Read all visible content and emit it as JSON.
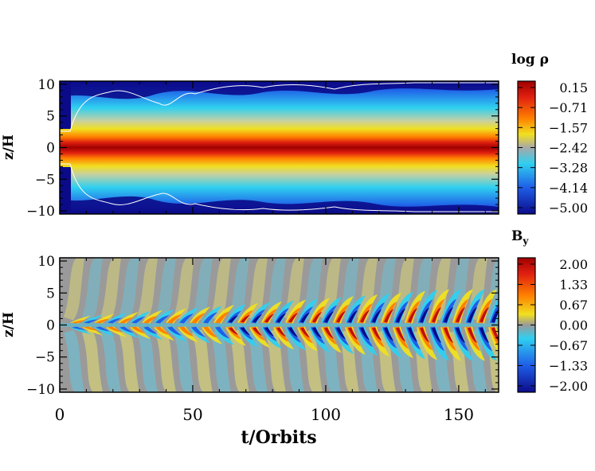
{
  "figure": {
    "xlabel": "t/Orbits",
    "x_ticks": [
      "0",
      "50",
      "100",
      "150"
    ]
  },
  "chart_data": [
    {
      "type": "heatmap",
      "title": "",
      "xlabel": "t/Orbits",
      "ylabel": "z/H",
      "xlim": [
        0,
        165
      ],
      "ylim": [
        -10.5,
        10.5
      ],
      "x_tick_values": [
        0,
        50,
        100,
        150
      ],
      "y_tick_values": [
        10,
        5,
        0,
        -5,
        -10
      ],
      "y_tick_labels": [
        "10",
        "5",
        "0",
        "−5",
        "−10"
      ],
      "colorbar": {
        "label": "log ρ",
        "ticks": [
          "0.15",
          "−0.71",
          "−1.57",
          "−2.42",
          "−3.28",
          "−4.14",
          "−5.00"
        ],
        "range": [
          -5.0,
          0.15
        ]
      },
      "colors": [
        "#0b0b8a",
        "#1f5ee8",
        "#2fd0f0",
        "#c8c8a0",
        "#f0e020",
        "#ff8000",
        "#d01010",
        "#a00000"
      ]
    },
    {
      "type": "heatmap",
      "title": "",
      "xlabel": "t/Orbits",
      "ylabel": "z/H",
      "xlim": [
        0,
        165
      ],
      "ylim": [
        -10.5,
        10.5
      ],
      "x_tick_values": [
        0,
        50,
        100,
        150
      ],
      "y_tick_values": [
        10,
        5,
        0,
        -5,
        -10
      ],
      "y_tick_labels": [
        "10",
        "5",
        "0",
        "−5",
        "−10"
      ],
      "colorbar": {
        "label": "B",
        "label_sub": "y",
        "ticks": [
          "2.00",
          "1.33",
          "0.67",
          "0.00",
          "−0.67",
          "−1.33",
          "−2.00"
        ],
        "range": [
          -2.0,
          2.0
        ]
      },
      "colors": [
        "#0b0b8a",
        "#1f5ee8",
        "#2fd0f0",
        "#9a9a9a",
        "#f0e020",
        "#ff8000",
        "#d01010",
        "#a00000"
      ]
    }
  ]
}
